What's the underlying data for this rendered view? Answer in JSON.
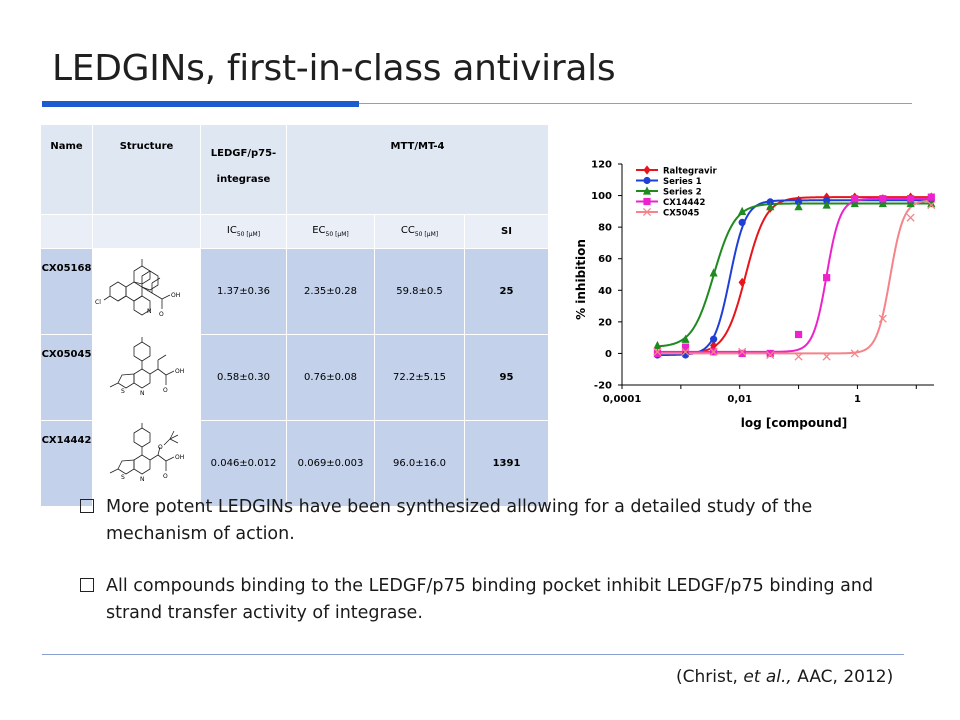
{
  "title": "LEDGINs, first-in-class antivirals",
  "table": {
    "col_name": "Name",
    "col_structure": "Structure",
    "col_ledgf_line1": "LEDGF/p75-",
    "col_ledgf_line2": "integrase",
    "col_mtt": "MTT/MT-4",
    "sub_ic": "IC",
    "sub_ec": "EC",
    "sub_cc": "CC",
    "sub_index": "50",
    "sub_unit": " [µM]",
    "sub_si": "SI",
    "rows": [
      {
        "name": "CX05168",
        "ic50": "1.37±0.36",
        "ec50": "2.35±0.28",
        "cc50": "59.8±0.5",
        "si": "25"
      },
      {
        "name": "CX05045",
        "ic50": "0.58±0.30",
        "ec50": "0.76±0.08",
        "cc50": "72.2±5.15",
        "si": "95"
      },
      {
        "name": "CX14442",
        "ic50": "0.046±0.012",
        "ec50": "0.069±0.003",
        "cc50": "96.0±16.0",
        "si": "1391"
      }
    ],
    "struct_labels": {
      "cl": "Cl",
      "oh": "OH",
      "o": "O",
      "s": "S",
      "n": "N"
    }
  },
  "chart_data": {
    "type": "scatter",
    "xlabel": "log [compound]",
    "ylabel": "% inhibition",
    "xscale": "log",
    "xlim": [
      0.0001,
      20
    ],
    "ylim": [
      -20,
      120
    ],
    "x_tick_labels": [
      "0,0001",
      "0,01",
      "1"
    ],
    "x_tick_values": [
      0.0001,
      0.01,
      1
    ],
    "y_ticks": [
      -20,
      0,
      20,
      40,
      60,
      80,
      100,
      120
    ],
    "legend_position": "top-left",
    "series": [
      {
        "name": "Raltegravir",
        "color": "#e8141b",
        "marker": "diamond",
        "x": [
          0.0004,
          0.0012,
          0.0036,
          0.011,
          0.033,
          0.1,
          0.3,
          0.9,
          2.7,
          8,
          18
        ],
        "y": [
          0,
          0,
          5,
          45,
          92,
          97,
          99,
          99,
          98,
          99,
          99
        ]
      },
      {
        "name": "Series 1",
        "color": "#1f3fd6",
        "marker": "circle",
        "x": [
          0.0004,
          0.0012,
          0.0036,
          0.011,
          0.033,
          0.1,
          0.3,
          0.9,
          2.7,
          8,
          18
        ],
        "y": [
          -1,
          -1,
          9,
          83,
          96,
          96,
          97,
          97,
          97,
          97,
          97
        ]
      },
      {
        "name": "Series 2",
        "color": "#1f8a1f",
        "marker": "triangle",
        "x": [
          0.0004,
          0.0012,
          0.0036,
          0.011,
          0.033,
          0.1,
          0.3,
          0.9,
          2.7,
          8,
          18
        ],
        "y": [
          5,
          9,
          51,
          90,
          93,
          93,
          94,
          95,
          95,
          95,
          95
        ]
      },
      {
        "name": "CX14442",
        "color": "#ee22cc",
        "marker": "square",
        "x": [
          0.0004,
          0.0012,
          0.0036,
          0.011,
          0.033,
          0.1,
          0.3,
          0.9,
          2.7,
          8,
          18
        ],
        "y": [
          0,
          4,
          1,
          0,
          0,
          12,
          48,
          98,
          98,
          98,
          99
        ]
      },
      {
        "name": "CX5045",
        "color": "#f4848a",
        "marker": "x",
        "x": [
          0.0004,
          0.0012,
          0.0036,
          0.011,
          0.033,
          0.1,
          0.3,
          0.9,
          2.7,
          8,
          18
        ],
        "y": [
          1,
          1,
          1,
          1,
          -1,
          -2,
          -2,
          0,
          22,
          86,
          94
        ]
      }
    ],
    "curve_ic50": {
      "Raltegravir": 0.0126,
      "Series 1": 0.0068,
      "Series 2": 0.0036,
      "CX14442": 0.3,
      "CX5045": 3.6
    },
    "curve_slope": {
      "Raltegravir": 2.5,
      "Series 1": 3.2,
      "Series 2": 2.4,
      "CX14442": 3.8,
      "CX5045": 3.8
    },
    "curve_top": {
      "Raltegravir": 99,
      "Series 1": 97,
      "Series 2": 95,
      "CX14442": 98,
      "CX5045": 97
    },
    "curve_bottom": {
      "Raltegravir": 0,
      "Series 1": -1,
      "Series 2": 4,
      "CX14442": 1,
      "CX5045": 0
    }
  },
  "bullets": [
    "More potent LEDGINs have been synthesized allowing for a detailed study of the mechanism of action.",
    "All compounds binding to the LEDGF/p75 binding pocket inhibit LEDGF/p75 binding and strand transfer activity of integrase."
  ],
  "citation": {
    "open": "(Christ, ",
    "etal": "et al.,",
    "rest": " AAC, 2012)"
  }
}
